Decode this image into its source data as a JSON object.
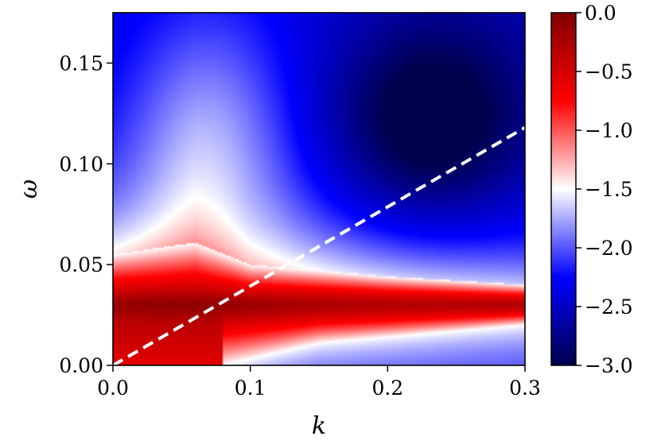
{
  "chart_data": {
    "type": "heatmap",
    "title": "",
    "xlabel": "k",
    "ylabel": "ω",
    "xlim": [
      0.0,
      0.3
    ],
    "ylim": [
      0.0,
      0.175
    ],
    "x_ticks": [
      0.0,
      0.1,
      0.2,
      0.3
    ],
    "x_tick_labels": [
      "0.0",
      "0.1",
      "0.2",
      "0.3"
    ],
    "y_ticks": [
      0.0,
      0.05,
      0.1,
      0.15
    ],
    "y_tick_labels": [
      "0.00",
      "0.05",
      "0.10",
      "0.15"
    ],
    "colorbar": {
      "range": [
        -3.0,
        0.0
      ],
      "ticks": [
        0.0,
        -0.5,
        -1.0,
        -1.5,
        -2.0,
        -2.5,
        -3.0
      ],
      "tick_labels": [
        "0.0",
        "−0.5",
        "−1.0",
        "−1.5",
        "−2.0",
        "−2.5",
        "−3.0"
      ],
      "colormap": "seismic",
      "colors": {
        "low": "#00004d",
        "mid_low": "#0000ff",
        "center": "#ffffff",
        "mid_high": "#ff0000",
        "high": "#800000"
      }
    },
    "features": {
      "peak_band_omega": 0.03,
      "red_region_upper_edge": [
        {
          "k": 0.0,
          "omega": 0.055
        },
        {
          "k": 0.06,
          "omega": 0.061
        },
        {
          "k": 0.1,
          "omega": 0.05
        },
        {
          "k": 0.2,
          "omega": 0.044
        },
        {
          "k": 0.3,
          "omega": 0.04
        }
      ],
      "red_region_lower_edge": [
        {
          "k": 0.08,
          "omega": 0.0
        },
        {
          "k": 0.15,
          "omega": 0.011
        },
        {
          "k": 0.3,
          "omega": 0.02
        }
      ],
      "dark_minimum": {
        "k": 0.23,
        "omega": 0.12,
        "value": -3.0
      }
    },
    "line": {
      "style": "dashed",
      "color": "#ffffff",
      "points": [
        {
          "k": 0.0,
          "omega": 0.0
        },
        {
          "k": 0.3,
          "omega": 0.118
        }
      ]
    }
  }
}
